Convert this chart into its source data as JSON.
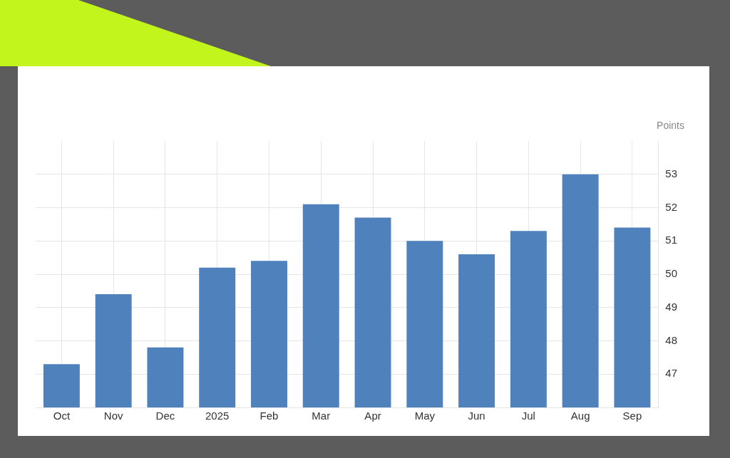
{
  "chart_data": {
    "type": "bar",
    "ylabel": "Points",
    "categories": [
      "Oct",
      "Nov",
      "Dec",
      "2025",
      "Feb",
      "Mar",
      "Apr",
      "May",
      "Jun",
      "Jul",
      "Aug",
      "Sep"
    ],
    "values": [
      47.3,
      49.4,
      47.8,
      50.2,
      50.4,
      52.1,
      51.7,
      51.0,
      50.6,
      51.3,
      53.0,
      51.4
    ],
    "color": "#4f81bd",
    "ylim": [
      46,
      54
    ],
    "yticks": [
      47,
      48,
      49,
      50,
      51,
      52,
      53
    ],
    "grid": true,
    "legend": false
  }
}
